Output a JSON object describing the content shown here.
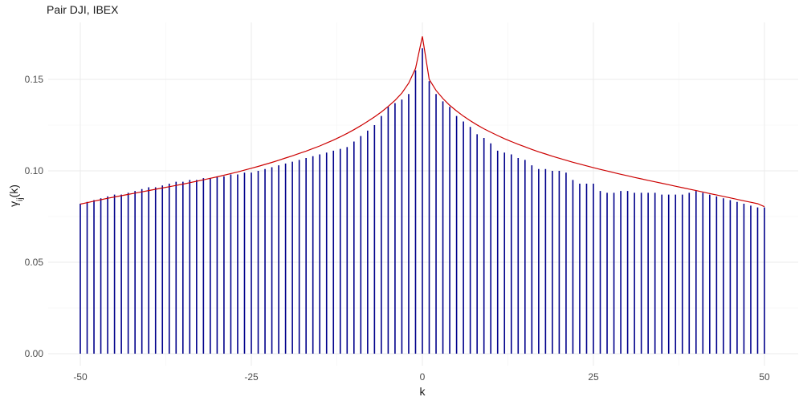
{
  "chart_data": {
    "type": "bar",
    "title": "Pair DJI, IBEX",
    "xlabel": "k",
    "ylabel_base": "γ",
    "ylabel_sub": "ij",
    "ylabel_arg": "(k)",
    "xlim": [
      -50,
      50
    ],
    "ylim": [
      0,
      0.175
    ],
    "x_ticks": [
      -50,
      -25,
      0,
      25,
      50
    ],
    "x_tick_labels": [
      "-50",
      "-25",
      "0",
      "25",
      "50"
    ],
    "y_ticks": [
      0,
      0.05,
      0.1,
      0.15
    ],
    "y_tick_labels": [
      "0.00",
      "0.05",
      "0.10",
      "0.15"
    ],
    "grid": true,
    "bar_color": "#00008b",
    "line_color": "#cc0000",
    "x": [
      -50,
      -49,
      -48,
      -47,
      -46,
      -45,
      -44,
      -43,
      -42,
      -41,
      -40,
      -39,
      -38,
      -37,
      -36,
      -35,
      -34,
      -33,
      -32,
      -31,
      -30,
      -29,
      -28,
      -27,
      -26,
      -25,
      -24,
      -23,
      -22,
      -21,
      -20,
      -19,
      -18,
      -17,
      -16,
      -15,
      -14,
      -13,
      -12,
      -11,
      -10,
      -9,
      -8,
      -7,
      -6,
      -5,
      -4,
      -3,
      -2,
      -1,
      0,
      1,
      2,
      3,
      4,
      5,
      6,
      7,
      8,
      9,
      10,
      11,
      12,
      13,
      14,
      15,
      16,
      17,
      18,
      19,
      20,
      21,
      22,
      23,
      24,
      25,
      26,
      27,
      28,
      29,
      30,
      31,
      32,
      33,
      34,
      35,
      36,
      37,
      38,
      39,
      40,
      41,
      42,
      43,
      44,
      45,
      46,
      47,
      48,
      49,
      50
    ],
    "series": [
      {
        "values": [
          0.082,
          0.083,
          0.084,
          0.085,
          0.086,
          0.087,
          0.087,
          0.088,
          0.089,
          0.09,
          0.091,
          0.091,
          0.092,
          0.093,
          0.094,
          0.094,
          0.095,
          0.095,
          0.096,
          0.096,
          0.097,
          0.097,
          0.098,
          0.098,
          0.099,
          0.099,
          0.1,
          0.101,
          0.102,
          0.103,
          0.104,
          0.105,
          0.106,
          0.107,
          0.108,
          0.109,
          0.11,
          0.111,
          0.112,
          0.113,
          0.116,
          0.119,
          0.122,
          0.125,
          0.13,
          0.135,
          0.137,
          0.139,
          0.142,
          0.155,
          0.167,
          0.149,
          0.142,
          0.138,
          0.135,
          0.13,
          0.127,
          0.124,
          0.12,
          0.118,
          0.115,
          0.111,
          0.11,
          0.109,
          0.107,
          0.106,
          0.103,
          0.101,
          0.101,
          0.1,
          0.1,
          0.099,
          0.095,
          0.093,
          0.093,
          0.093,
          0.089,
          0.088,
          0.088,
          0.089,
          0.089,
          0.088,
          0.088,
          0.088,
          0.088,
          0.087,
          0.087,
          0.087,
          0.087,
          0.088,
          0.089,
          0.088,
          0.087,
          0.086,
          0.085,
          0.084,
          0.083,
          0.082,
          0.081,
          0.08,
          0.08
        ]
      },
      {
        "values": [
          0.0818,
          0.0826,
          0.0834,
          0.0842,
          0.085,
          0.0857,
          0.0864,
          0.0871,
          0.0878,
          0.0885,
          0.0892,
          0.0899,
          0.0906,
          0.0913,
          0.092,
          0.0927,
          0.0935,
          0.0943,
          0.0951,
          0.0959,
          0.0967,
          0.0976,
          0.0985,
          0.0994,
          0.1004,
          0.1014,
          0.1024,
          0.1035,
          0.1046,
          0.1058,
          0.107,
          0.1082,
          0.1095,
          0.1108,
          0.1122,
          0.1136,
          0.1152,
          0.1168,
          0.1186,
          0.1205,
          0.1225,
          0.1247,
          0.127,
          0.1295,
          0.1322,
          0.1352,
          0.1385,
          0.1425,
          0.148,
          0.156,
          0.1735,
          0.15,
          0.144,
          0.1395,
          0.1358,
          0.1327,
          0.1299,
          0.1274,
          0.1251,
          0.123,
          0.1211,
          0.1193,
          0.1176,
          0.116,
          0.1145,
          0.1131,
          0.1117,
          0.1104,
          0.1092,
          0.108,
          0.1069,
          0.1058,
          0.1047,
          0.1037,
          0.1027,
          0.1017,
          0.1008,
          0.0999,
          0.099,
          0.0981,
          0.0973,
          0.0964,
          0.0956,
          0.0948,
          0.094,
          0.0932,
          0.0924,
          0.0916,
          0.0908,
          0.09,
          0.0892,
          0.0884,
          0.0876,
          0.0868,
          0.086,
          0.0852,
          0.0844,
          0.0836,
          0.0828,
          0.082,
          0.0804
        ]
      }
    ]
  }
}
